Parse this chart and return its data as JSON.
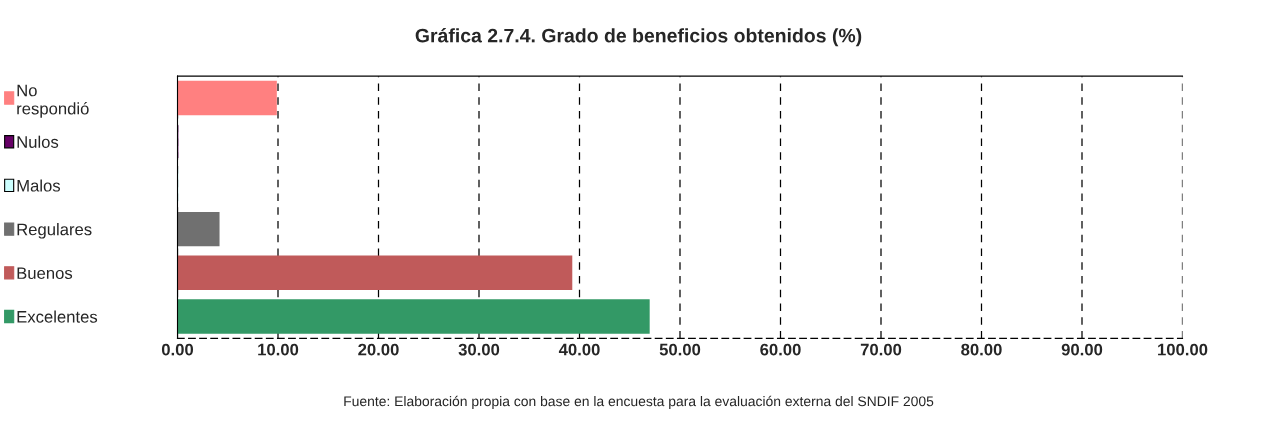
{
  "chart_data": {
    "type": "bar",
    "orientation": "horizontal",
    "title": "Gráfica 2.7.4. Grado de beneficios obtenidos (%)",
    "categories": [
      "No\nrespondió",
      "Nulos",
      "Malos",
      "Regulares",
      "Buenos",
      "Excelentes"
    ],
    "values": [
      9.8,
      0,
      0,
      4.1,
      39.2,
      46.9
    ],
    "colors": [
      "#ff8080",
      "#660066",
      "#ccffff",
      "#707070",
      "#c05a5a",
      "#339966"
    ],
    "xlim": [
      0,
      100
    ],
    "xticks": [
      {
        "value": 0,
        "label": "0.00"
      },
      {
        "value": 10,
        "label": "10.00"
      },
      {
        "value": 20,
        "label": "20.00"
      },
      {
        "value": 30,
        "label": "30.00"
      },
      {
        "value": 40,
        "label": "40.00"
      },
      {
        "value": 50,
        "label": "50.00"
      },
      {
        "value": 60,
        "label": "60.00"
      },
      {
        "value": 70,
        "label": "70.00"
      },
      {
        "value": 80,
        "label": "80.00"
      },
      {
        "value": 90,
        "label": "90.00"
      },
      {
        "value": 100,
        "label": "100.00"
      }
    ],
    "grid": "x",
    "annotations": [
      "Fuente: Elaboración propia con base en la encuesta para la evaluación externa del SNDIF 2005"
    ]
  }
}
